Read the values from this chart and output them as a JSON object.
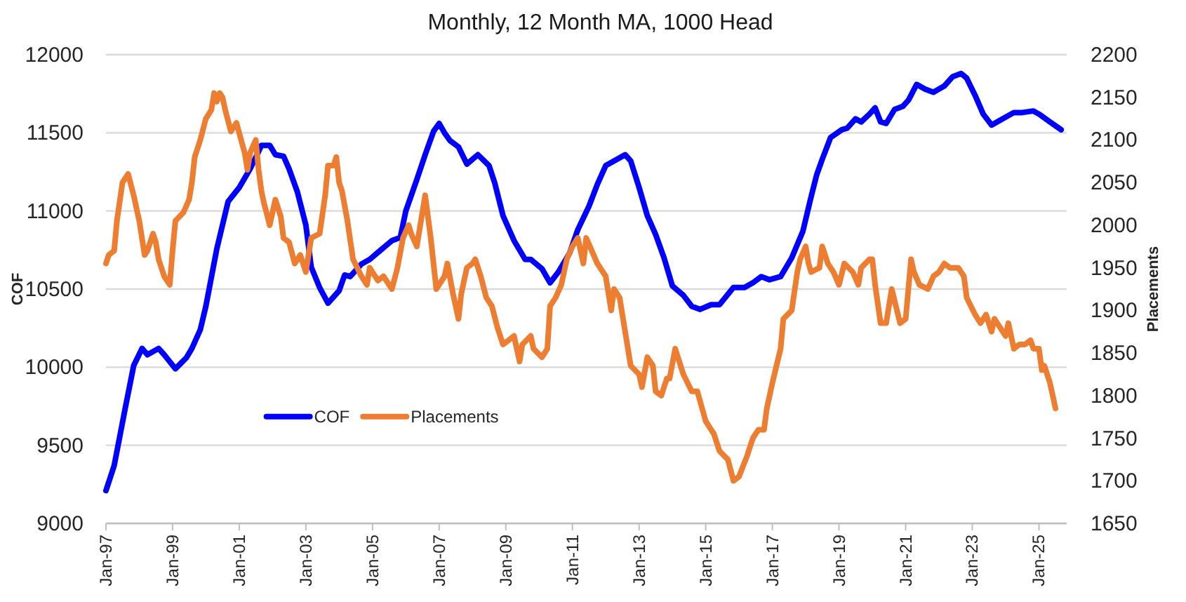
{
  "chart_data": {
    "type": "line",
    "title": "Monthly, 12 Month MA, 1000 Head",
    "ylabel": "COF",
    "y2label": "Placements",
    "xlim": [
      "1997-01",
      "2025-11"
    ],
    "xticks": [
      {
        "value": "1997-01",
        "label": "Jan-97"
      },
      {
        "value": "1999-01",
        "label": "Jan-99"
      },
      {
        "value": "2001-01",
        "label": "Jan-01"
      },
      {
        "value": "2003-01",
        "label": "Jan-03"
      },
      {
        "value": "2005-01",
        "label": "Jan-05"
      },
      {
        "value": "2007-01",
        "label": "Jan-07"
      },
      {
        "value": "2009-01",
        "label": "Jan-09"
      },
      {
        "value": "2011-01",
        "label": "Jan-11"
      },
      {
        "value": "2013-01",
        "label": "Jan-13"
      },
      {
        "value": "2015-01",
        "label": "Jan-15"
      },
      {
        "value": "2017-01",
        "label": "Jan-17"
      },
      {
        "value": "2019-01",
        "label": "Jan-19"
      },
      {
        "value": "2021-01",
        "label": "Jan-21"
      },
      {
        "value": "2023-01",
        "label": "Jan-23"
      },
      {
        "value": "2025-01",
        "label": "Jan-25"
      }
    ],
    "ylim": [
      9000,
      12000
    ],
    "yticks": [
      9000,
      9500,
      10000,
      10500,
      11000,
      11500,
      12000
    ],
    "y2lim": [
      1650,
      2200
    ],
    "y2ticks": [
      1650,
      1700,
      1750,
      1800,
      1850,
      1900,
      1950,
      2000,
      2050,
      2100,
      2150,
      2200
    ],
    "grid": "y",
    "legend": "bottom left",
    "series": [
      {
        "name": "COF",
        "color": "#0000ff",
        "x": [
          "1997-01",
          "1997-04",
          "1997-08",
          "1997-11",
          "1998-02",
          "1998-04",
          "1998-08",
          "1998-10",
          "1999-02",
          "1999-06",
          "1999-08",
          "1999-11",
          "2000-01",
          "2000-05",
          "2000-09",
          "2001-01",
          "2001-05",
          "2001-08",
          "2001-09",
          "2001-12",
          "2002-02",
          "2002-05",
          "2002-07",
          "2002-10",
          "2003-01",
          "2003-03",
          "2003-06",
          "2003-09",
          "2004-01",
          "2004-03",
          "2004-05",
          "2004-09",
          "2004-12",
          "2005-04",
          "2005-08",
          "2005-11",
          "2006-01",
          "2006-05",
          "2006-08",
          "2006-11",
          "2007-01",
          "2007-03",
          "2007-05",
          "2007-08",
          "2007-11",
          "2008-03",
          "2008-07",
          "2008-09",
          "2008-12",
          "2009-04",
          "2009-08",
          "2009-10",
          "2010-02",
          "2010-05",
          "2010-08",
          "2010-12",
          "2011-03",
          "2011-07",
          "2011-10",
          "2012-01",
          "2012-05",
          "2012-08",
          "2012-10",
          "2013-01",
          "2013-04",
          "2013-07",
          "2013-10",
          "2014-01",
          "2014-05",
          "2014-08",
          "2014-11",
          "2015-03",
          "2015-06",
          "2015-11",
          "2016-03",
          "2016-06",
          "2016-09",
          "2016-12",
          "2017-04",
          "2017-08",
          "2017-12",
          "2018-03",
          "2018-05",
          "2018-07",
          "2018-10",
          "2019-02",
          "2019-04",
          "2019-07",
          "2019-09",
          "2019-12",
          "2020-02",
          "2020-04",
          "2020-06",
          "2020-09",
          "2020-12",
          "2021-02",
          "2021-05",
          "2021-08",
          "2021-11",
          "2022-03",
          "2022-06",
          "2022-09",
          "2022-11",
          "2023-02",
          "2023-05",
          "2023-08",
          "2023-12",
          "2024-04",
          "2024-07",
          "2024-11",
          "2025-01",
          "2025-05",
          "2025-09"
        ],
        "values": [
          9210,
          9370,
          9740,
          10010,
          10120,
          10080,
          10120,
          10080,
          9990,
          10060,
          10120,
          10240,
          10390,
          10760,
          11060,
          11150,
          11270,
          11380,
          11420,
          11420,
          11360,
          11350,
          11270,
          11120,
          10910,
          10640,
          10510,
          10410,
          10490,
          10590,
          10580,
          10660,
          10690,
          10750,
          10810,
          10830,
          11000,
          11200,
          11360,
          11510,
          11560,
          11500,
          11450,
          11410,
          11300,
          11360,
          11290,
          11180,
          10970,
          10810,
          10690,
          10690,
          10630,
          10540,
          10610,
          10730,
          10880,
          11030,
          11170,
          11290,
          11330,
          11360,
          11320,
          11150,
          10970,
          10850,
          10700,
          10520,
          10460,
          10390,
          10370,
          10400,
          10400,
          10510,
          10510,
          10540,
          10580,
          10560,
          10580,
          10700,
          10870,
          11090,
          11230,
          11330,
          11470,
          11520,
          11530,
          11590,
          11570,
          11620,
          11660,
          11570,
          11560,
          11650,
          11670,
          11710,
          11810,
          11780,
          11760,
          11800,
          11860,
          11880,
          11850,
          11740,
          11620,
          11550,
          11590,
          11630,
          11630,
          11640,
          11620,
          11570,
          11520
        ]
      },
      {
        "name": "Placements",
        "color": "#ed7d31",
        "axis": "y2",
        "x": [
          "1997-01",
          "1997-02",
          "1997-04",
          "1997-05",
          "1997-07",
          "1997-09",
          "1997-11",
          "1998-01",
          "1998-03",
          "1998-04",
          "1998-06",
          "1998-07",
          "1998-08",
          "1998-10",
          "1998-12",
          "1999-01",
          "1999-02",
          "1999-05",
          "1999-07",
          "1999-08",
          "1999-09",
          "1999-11",
          "2000-01",
          "2000-03",
          "2000-04",
          "2000-05",
          "2000-06",
          "2000-07",
          "2000-08",
          "2000-10",
          "2000-12",
          "2001-03",
          "2001-04",
          "2001-05",
          "2001-07",
          "2001-08",
          "2001-09",
          "2001-10",
          "2001-12",
          "2002-02",
          "2002-04",
          "2002-05",
          "2002-07",
          "2002-09",
          "2002-11",
          "2003-01",
          "2003-03",
          "2003-06",
          "2003-08",
          "2003-09",
          "2003-11",
          "2003-12",
          "2004-01",
          "2004-02",
          "2004-04",
          "2004-06",
          "2004-09",
          "2004-11",
          "2004-12",
          "2005-03",
          "2005-05",
          "2005-08",
          "2005-10",
          "2005-12",
          "2006-02",
          "2006-03",
          "2006-05",
          "2006-08",
          "2006-10",
          "2006-12",
          "2007-03",
          "2007-04",
          "2007-06",
          "2007-08",
          "2007-09",
          "2007-11",
          "2008-01",
          "2008-02",
          "2008-04",
          "2008-06",
          "2008-08",
          "2008-10",
          "2008-12",
          "2009-02",
          "2009-04",
          "2009-06",
          "2009-07",
          "2009-10",
          "2009-11",
          "2010-02",
          "2010-04",
          "2010-05",
          "2010-07",
          "2010-09",
          "2010-11",
          "2011-01",
          "2011-03",
          "2011-05",
          "2011-06",
          "2011-08",
          "2011-10",
          "2012-01",
          "2012-03",
          "2012-04",
          "2012-06",
          "2012-08",
          "2012-10",
          "2013-01",
          "2013-02",
          "2013-04",
          "2013-06",
          "2013-07",
          "2013-09",
          "2013-11",
          "2013-12",
          "2014-02",
          "2014-05",
          "2014-08",
          "2014-10",
          "2015-01",
          "2015-04",
          "2015-06",
          "2015-09",
          "2015-11",
          "2016-01",
          "2016-04",
          "2016-06",
          "2016-08",
          "2016-10",
          "2016-11",
          "2017-01",
          "2017-04",
          "2017-05",
          "2017-08",
          "2017-10",
          "2017-11",
          "2018-01",
          "2018-02",
          "2018-03",
          "2018-06",
          "2018-07",
          "2018-09",
          "2018-11",
          "2019-01",
          "2019-03",
          "2019-06",
          "2019-08",
          "2019-09",
          "2019-12",
          "2020-01",
          "2020-02",
          "2020-04",
          "2020-06",
          "2020-08",
          "2020-11",
          "2021-01",
          "2021-03",
          "2021-04",
          "2021-06",
          "2021-09",
          "2021-11",
          "2022-01",
          "2022-03",
          "2022-05",
          "2022-08",
          "2022-10",
          "2022-11",
          "2023-02",
          "2023-04",
          "2023-06",
          "2023-08",
          "2023-09",
          "2023-11",
          "2024-01",
          "2024-02",
          "2024-04",
          "2024-06",
          "2024-08",
          "2024-10",
          "2024-11",
          "2025-01",
          "2025-02",
          "2025-03",
          "2025-05",
          "2025-06",
          "2025-07"
        ],
        "values": [
          1955,
          1965,
          1970,
          2005,
          2050,
          2060,
          2035,
          2005,
          1965,
          1970,
          1990,
          1980,
          1960,
          1940,
          1930,
          1970,
          2005,
          2015,
          2030,
          2050,
          2080,
          2100,
          2125,
          2135,
          2155,
          2145,
          2155,
          2150,
          2135,
          2110,
          2120,
          2085,
          2065,
          2085,
          2100,
          2065,
          2040,
          2025,
          2000,
          2030,
          2010,
          1985,
          1980,
          1955,
          1965,
          1945,
          1985,
          1990,
          2035,
          2070,
          2070,
          2080,
          2050,
          2040,
          2005,
          1960,
          1940,
          1930,
          1950,
          1935,
          1940,
          1925,
          1950,
          1985,
          2000,
          1990,
          1975,
          2035,
          1985,
          1925,
          1940,
          1955,
          1920,
          1890,
          1920,
          1950,
          1955,
          1960,
          1940,
          1915,
          1905,
          1880,
          1860,
          1865,
          1870,
          1840,
          1860,
          1870,
          1855,
          1845,
          1855,
          1905,
          1915,
          1930,
          1960,
          1975,
          1985,
          1955,
          1985,
          1970,
          1955,
          1940,
          1900,
          1925,
          1915,
          1875,
          1835,
          1825,
          1810,
          1845,
          1835,
          1805,
          1800,
          1820,
          1820,
          1855,
          1825,
          1805,
          1805,
          1770,
          1755,
          1735,
          1725,
          1700,
          1705,
          1730,
          1750,
          1760,
          1760,
          1785,
          1815,
          1855,
          1890,
          1900,
          1945,
          1960,
          1975,
          1955,
          1945,
          1950,
          1975,
          1955,
          1945,
          1930,
          1955,
          1945,
          1930,
          1950,
          1960,
          1960,
          1930,
          1885,
          1885,
          1925,
          1885,
          1890,
          1960,
          1945,
          1930,
          1925,
          1940,
          1945,
          1955,
          1950,
          1950,
          1940,
          1915,
          1895,
          1885,
          1895,
          1875,
          1890,
          1880,
          1870,
          1885,
          1855,
          1860,
          1860,
          1865,
          1855,
          1855,
          1830,
          1835,
          1815,
          1800,
          1785
        ]
      }
    ]
  }
}
